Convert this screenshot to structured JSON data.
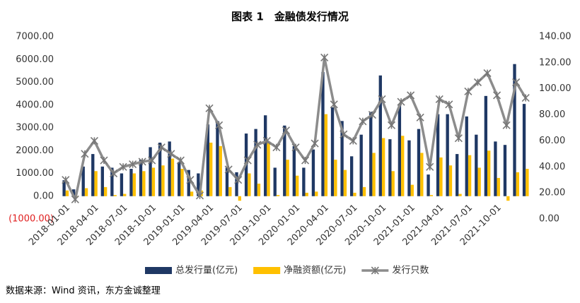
{
  "chart_data": {
    "type": "bar_line",
    "title": "图表 1　金融债发行情况",
    "source": "数据来源：Wind 资讯，东方金诚整理",
    "categories": [
      "2018-01-01",
      null,
      null,
      "2018-04-01",
      null,
      null,
      "2018-07-01",
      null,
      null,
      "2018-10-01",
      null,
      null,
      "2019-01-01",
      null,
      null,
      "2019-04-01",
      null,
      null,
      "2019-07-01",
      null,
      null,
      "2019-10-01",
      null,
      null,
      "2020-01-01",
      null,
      null,
      "2020-04-01",
      null,
      null,
      "2020-07-01",
      null,
      null,
      "2020-10-01",
      null,
      null,
      "2021-01-01",
      null,
      null,
      "2021-04-01",
      null,
      null,
      "2021-07-01",
      null,
      null,
      "2021-10-01",
      null,
      null,
      null
    ],
    "series": [
      {
        "name": "总发行量(亿元)",
        "type": "bar",
        "color": "#1f3864",
        "values": [
          700,
          300,
          1300,
          1850,
          1300,
          1250,
          1000,
          1200,
          1600,
          2150,
          2350,
          2400,
          1500,
          1150,
          1000,
          3150,
          3300,
          1250,
          1050,
          2750,
          2950,
          3550,
          1250,
          3100,
          2200,
          1250,
          2050,
          5450,
          3900,
          3300,
          1750,
          2700,
          3700,
          5300,
          2500,
          4000,
          2450,
          2950,
          950,
          3600,
          3600,
          1850,
          3500,
          2700,
          4400,
          2400,
          2250,
          5800,
          4050
        ]
      },
      {
        "name": "净融资额(亿元)",
        "type": "bar",
        "color": "#ffc000",
        "values": [
          250,
          -50,
          350,
          1100,
          400,
          50,
          100,
          1000,
          1100,
          1250,
          1350,
          1650,
          1200,
          200,
          250,
          2350,
          2200,
          400,
          -200,
          1000,
          550,
          2400,
          50,
          1600,
          900,
          150,
          200,
          3600,
          1600,
          1150,
          150,
          400,
          1900,
          2550,
          1100,
          2650,
          500,
          1900,
          50,
          1700,
          1350,
          100,
          1800,
          1250,
          2000,
          800,
          -200,
          1050,
          1200
        ]
      },
      {
        "name": "发行只数",
        "type": "line",
        "axis": "y2",
        "color": "#8c8c8c",
        "values": [
          30,
          15,
          50,
          60,
          45,
          35,
          40,
          42,
          44,
          45,
          55,
          50,
          45,
          30,
          18,
          85,
          72,
          38,
          30,
          45,
          57,
          60,
          55,
          68,
          55,
          45,
          58,
          124,
          88,
          65,
          60,
          75,
          80,
          92,
          72,
          90,
          95,
          78,
          40,
          92,
          88,
          62,
          98,
          105,
          112,
          95,
          72,
          105,
          93
        ]
      }
    ],
    "ylim": [
      -1000,
      7000
    ],
    "yticks": [
      {
        "value": -1000,
        "label": "(1000.00)"
      },
      {
        "value": 0,
        "label": "0.00"
      },
      {
        "value": 1000,
        "label": "1000.00"
      },
      {
        "value": 2000,
        "label": "2000.00"
      },
      {
        "value": 3000,
        "label": "3000.00"
      },
      {
        "value": 4000,
        "label": "4000.00"
      },
      {
        "value": 5000,
        "label": "5000.00"
      },
      {
        "value": 6000,
        "label": "6000.00"
      },
      {
        "value": 7000,
        "label": "7000.00"
      }
    ],
    "y2lim": [
      0,
      140
    ],
    "y2ticks": [
      {
        "value": 0,
        "label": "0.00"
      },
      {
        "value": 20,
        "label": "20.00"
      },
      {
        "value": 40,
        "label": "40.00"
      },
      {
        "value": 60,
        "label": "60.00"
      },
      {
        "value": 80,
        "label": "80.00"
      },
      {
        "value": 100,
        "label": "100.00"
      },
      {
        "value": 120,
        "label": "120.00"
      },
      {
        "value": 140,
        "label": "140.00"
      }
    ],
    "negative_tick_color": "#e02020",
    "grid": false,
    "legend": "bottom"
  }
}
